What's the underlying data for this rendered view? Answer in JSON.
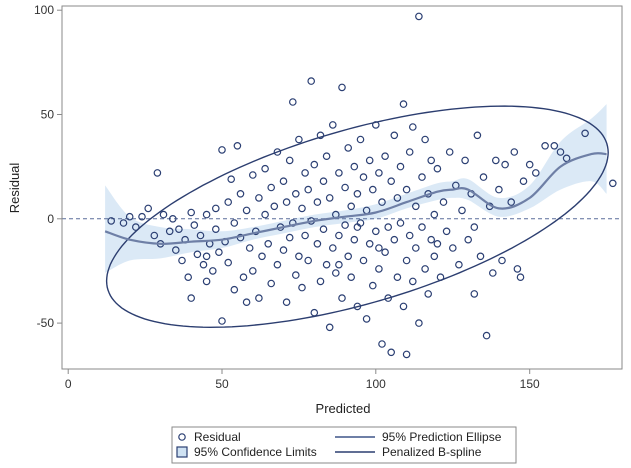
{
  "chart_data": {
    "type": "scatter",
    "xlabel": "Predicted",
    "ylabel": "Residual",
    "xlim": [
      -2,
      180
    ],
    "ylim": [
      -72,
      102
    ],
    "xticks": [
      0,
      50,
      100,
      150
    ],
    "yticks": [
      -50,
      0,
      50,
      100
    ],
    "reference_line_y": 0,
    "grid": false,
    "legend_position": "bottom",
    "legend": [
      {
        "label": "Residual",
        "marker": "circle"
      },
      {
        "label": "95% Prediction Ellipse",
        "marker": "line-light"
      },
      {
        "label": "95% Confidence Limits",
        "marker": "band"
      },
      {
        "label": "Penalized B-spline",
        "marker": "line-dark"
      }
    ],
    "colors": {
      "marker": "#2b3f73",
      "ellipse": "#2c3e70",
      "spline": "#6e7fa6",
      "band": "#cfe2f3",
      "reference": "#5a6d9a",
      "frame": "#8a8a8a"
    },
    "series": [
      {
        "name": "Residual",
        "kind": "scatter",
        "points": [
          [
            14,
            -1
          ],
          [
            18,
            -2
          ],
          [
            20,
            1
          ],
          [
            22,
            -4
          ],
          [
            24,
            1
          ],
          [
            26,
            5
          ],
          [
            28,
            -8
          ],
          [
            29,
            22
          ],
          [
            30,
            -12
          ],
          [
            31,
            2
          ],
          [
            33,
            -6
          ],
          [
            34,
            0
          ],
          [
            35,
            -15
          ],
          [
            36,
            -5
          ],
          [
            37,
            -20
          ],
          [
            38,
            -10
          ],
          [
            39,
            -28
          ],
          [
            40,
            3
          ],
          [
            40,
            -38
          ],
          [
            41,
            -3
          ],
          [
            42,
            -17
          ],
          [
            43,
            -8
          ],
          [
            44,
            -22
          ],
          [
            45,
            2
          ],
          [
            45,
            -30
          ],
          [
            46,
            -12
          ],
          [
            47,
            -25
          ],
          [
            48,
            5
          ],
          [
            48,
            -5
          ],
          [
            49,
            -16
          ],
          [
            50,
            33
          ],
          [
            50,
            -49
          ],
          [
            51,
            -11
          ],
          [
            52,
            8
          ],
          [
            52,
            -21
          ],
          [
            53,
            19
          ],
          [
            54,
            -2
          ],
          [
            54,
            -34
          ],
          [
            55,
            35
          ],
          [
            56,
            -9
          ],
          [
            56,
            12
          ],
          [
            57,
            -28
          ],
          [
            58,
            4
          ],
          [
            59,
            -14
          ],
          [
            60,
            -25
          ],
          [
            60,
            21
          ],
          [
            61,
            -6
          ],
          [
            62,
            10
          ],
          [
            62,
            -38
          ],
          [
            63,
            -18
          ],
          [
            64,
            2
          ],
          [
            64,
            24
          ],
          [
            65,
            -12
          ],
          [
            66,
            -31
          ],
          [
            66,
            15
          ],
          [
            67,
            6
          ],
          [
            68,
            -22
          ],
          [
            68,
            32
          ],
          [
            69,
            -4
          ],
          [
            70,
            -15
          ],
          [
            70,
            18
          ],
          [
            71,
            -40
          ],
          [
            71,
            8
          ],
          [
            72,
            -9
          ],
          [
            72,
            28
          ],
          [
            73,
            56
          ],
          [
            73,
            -2
          ],
          [
            74,
            -27
          ],
          [
            74,
            12
          ],
          [
            75,
            -18
          ],
          [
            75,
            38
          ],
          [
            76,
            5
          ],
          [
            76,
            -33
          ],
          [
            77,
            22
          ],
          [
            77,
            -8
          ],
          [
            78,
            -20
          ],
          [
            78,
            14
          ],
          [
            79,
            66
          ],
          [
            79,
            -1
          ],
          [
            80,
            -45
          ],
          [
            80,
            26
          ],
          [
            81,
            -12
          ],
          [
            81,
            8
          ],
          [
            82,
            -30
          ],
          [
            82,
            40
          ],
          [
            83,
            18
          ],
          [
            83,
            -5
          ],
          [
            84,
            30
          ],
          [
            84,
            -22
          ],
          [
            85,
            -52
          ],
          [
            85,
            10
          ],
          [
            86,
            -14
          ],
          [
            86,
            45
          ],
          [
            87,
            2
          ],
          [
            87,
            -26
          ],
          [
            88,
            22
          ],
          [
            88,
            -8
          ],
          [
            89,
            63
          ],
          [
            89,
            -38
          ],
          [
            90,
            15
          ],
          [
            90,
            -3
          ],
          [
            91,
            -18
          ],
          [
            91,
            34
          ],
          [
            92,
            6
          ],
          [
            92,
            -28
          ],
          [
            93,
            -10
          ],
          [
            93,
            25
          ],
          [
            94,
            -42
          ],
          [
            94,
            12
          ],
          [
            95,
            -2
          ],
          [
            95,
            38
          ],
          [
            96,
            -20
          ],
          [
            96,
            20
          ],
          [
            97,
            -48
          ],
          [
            97,
            4
          ],
          [
            98,
            28
          ],
          [
            98,
            -12
          ],
          [
            99,
            -32
          ],
          [
            99,
            14
          ],
          [
            100,
            -6
          ],
          [
            100,
            45
          ],
          [
            101,
            22
          ],
          [
            101,
            -24
          ],
          [
            102,
            -60
          ],
          [
            102,
            8
          ],
          [
            103,
            30
          ],
          [
            103,
            -16
          ],
          [
            104,
            -4
          ],
          [
            104,
            -38
          ],
          [
            105,
            18
          ],
          [
            105,
            -64
          ],
          [
            106,
            -10
          ],
          [
            106,
            40
          ],
          [
            107,
            -28
          ],
          [
            107,
            10
          ],
          [
            108,
            25
          ],
          [
            108,
            -2
          ],
          [
            109,
            -42
          ],
          [
            109,
            55
          ],
          [
            110,
            14
          ],
          [
            110,
            -20
          ],
          [
            111,
            -8
          ],
          [
            111,
            32
          ],
          [
            112,
            44
          ],
          [
            112,
            -30
          ],
          [
            113,
            6
          ],
          [
            113,
            -14
          ],
          [
            114,
            97
          ],
          [
            114,
            -50
          ],
          [
            115,
            20
          ],
          [
            115,
            -4
          ],
          [
            116,
            38
          ],
          [
            116,
            -24
          ],
          [
            117,
            12
          ],
          [
            117,
            -36
          ],
          [
            118,
            -10
          ],
          [
            118,
            28
          ],
          [
            119,
            2
          ],
          [
            119,
            -18
          ],
          [
            120,
            24
          ],
          [
            121,
            -28
          ],
          [
            122,
            8
          ],
          [
            123,
            -6
          ],
          [
            124,
            32
          ],
          [
            125,
            -14
          ],
          [
            126,
            16
          ],
          [
            127,
            -22
          ],
          [
            128,
            4
          ],
          [
            129,
            28
          ],
          [
            130,
            -10
          ],
          [
            131,
            12
          ],
          [
            132,
            -4
          ],
          [
            133,
            40
          ],
          [
            134,
            -18
          ],
          [
            135,
            20
          ],
          [
            136,
            -56
          ],
          [
            137,
            6
          ],
          [
            138,
            -26
          ],
          [
            140,
            14
          ],
          [
            141,
            -20
          ],
          [
            142,
            26
          ],
          [
            144,
            8
          ],
          [
            145,
            32
          ],
          [
            146,
            -24
          ],
          [
            147,
            -28
          ],
          [
            148,
            18
          ],
          [
            150,
            26
          ],
          [
            152,
            22
          ],
          [
            155,
            35
          ],
          [
            160,
            32
          ],
          [
            162,
            29
          ],
          [
            168,
            41
          ],
          [
            177,
            17
          ],
          [
            158,
            35
          ],
          [
            45,
            -18
          ],
          [
            58,
            -40
          ],
          [
            120,
            -12
          ],
          [
            110,
            -65
          ],
          [
            132,
            -36
          ],
          [
            139,
            28
          ],
          [
            88,
            -22
          ],
          [
            94,
            -4
          ],
          [
            101,
            -14
          ]
        ]
      },
      {
        "name": "Penalized B-spline",
        "kind": "curve",
        "x": [
          12,
          20,
          30,
          40,
          50,
          60,
          70,
          80,
          90,
          100,
          110,
          120,
          125,
          130,
          140,
          150,
          160,
          170,
          175
        ],
        "y": [
          -6,
          -10,
          -12,
          -11,
          -10,
          -7,
          -4,
          -1,
          1,
          3,
          8,
          13,
          14,
          14,
          5,
          10,
          25,
          31,
          31
        ]
      },
      {
        "name": "95% Confidence Limits",
        "kind": "band",
        "x": [
          12,
          20,
          30,
          40,
          50,
          60,
          70,
          80,
          90,
          100,
          110,
          120,
          125,
          130,
          140,
          150,
          160,
          170,
          175
        ],
        "lower": [
          -26,
          -20,
          -19,
          -16,
          -14,
          -10,
          -7,
          -4,
          -2,
          0,
          5,
          9,
          10,
          9,
          1,
          5,
          14,
          18,
          12
        ],
        "upper": [
          16,
          1,
          -4,
          -5,
          -6,
          -4,
          -1,
          2,
          4,
          7,
          12,
          17,
          18,
          19,
          10,
          16,
          37,
          48,
          55
        ]
      },
      {
        "name": "95% Prediction Ellipse",
        "kind": "ellipse",
        "center": [
          94,
          1
        ],
        "x_extent": [
          13,
          176
        ],
        "y_extent": [
          -53,
          53
        ]
      }
    ]
  }
}
